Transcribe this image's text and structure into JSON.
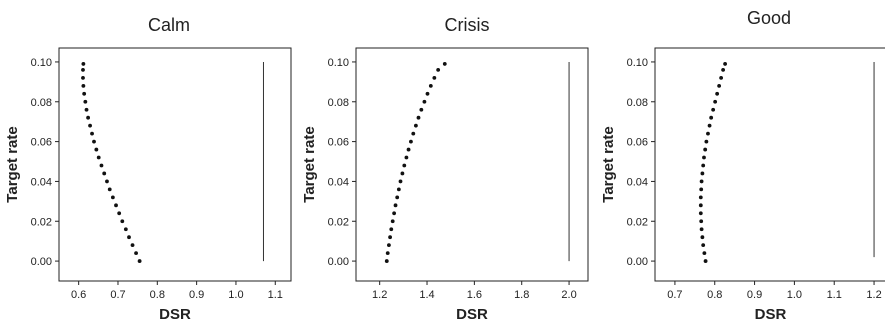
{
  "chart_data": [
    {
      "type": "scatter",
      "title": "Calm",
      "xlabel": "DSR",
      "ylabel": "Target rate",
      "xlim": [
        0.55,
        1.14
      ],
      "ylim": [
        -0.01,
        0.107
      ],
      "xticks": [
        0.6,
        0.7,
        0.8,
        0.9,
        1.0,
        1.1
      ],
      "xtick_labels": [
        "0.6",
        "0.7",
        "0.8",
        "0.9",
        "1.0",
        "1.1"
      ],
      "yticks": [
        0.0,
        0.02,
        0.04,
        0.06,
        0.08,
        0.1
      ],
      "ytick_labels": [
        "0.00",
        "0.02",
        "0.04",
        "0.06",
        "0.08",
        "0.10"
      ],
      "grid": false,
      "reference_line": {
        "x": 1.07,
        "y_range": [
          0.0,
          0.1
        ]
      },
      "points": [
        [
          0.755,
          0.0
        ],
        [
          0.746,
          0.004
        ],
        [
          0.737,
          0.008
        ],
        [
          0.728,
          0.012
        ],
        [
          0.72,
          0.016
        ],
        [
          0.711,
          0.02
        ],
        [
          0.703,
          0.024
        ],
        [
          0.695,
          0.028
        ],
        [
          0.687,
          0.032
        ],
        [
          0.679,
          0.036
        ],
        [
          0.672,
          0.04
        ],
        [
          0.665,
          0.044
        ],
        [
          0.658,
          0.048
        ],
        [
          0.651,
          0.052
        ],
        [
          0.645,
          0.056
        ],
        [
          0.639,
          0.06
        ],
        [
          0.634,
          0.064
        ],
        [
          0.629,
          0.068
        ],
        [
          0.624,
          0.072
        ],
        [
          0.62,
          0.076
        ],
        [
          0.617,
          0.08
        ],
        [
          0.614,
          0.084
        ],
        [
          0.612,
          0.088
        ],
        [
          0.611,
          0.092
        ],
        [
          0.611,
          0.096
        ],
        [
          0.612,
          0.099
        ]
      ]
    },
    {
      "type": "scatter",
      "title": "Crisis",
      "xlabel": "DSR",
      "ylabel": "Target rate",
      "xlim": [
        1.1,
        2.08
      ],
      "ylim": [
        -0.01,
        0.107
      ],
      "xticks": [
        1.2,
        1.4,
        1.6,
        1.8,
        2.0
      ],
      "xtick_labels": [
        "1.2",
        "1.4",
        "1.6",
        "1.8",
        "2.0"
      ],
      "yticks": [
        0.0,
        0.02,
        0.04,
        0.06,
        0.08,
        0.1
      ],
      "ytick_labels": [
        "0.00",
        "0.02",
        "0.04",
        "0.06",
        "0.08",
        "0.10"
      ],
      "grid": false,
      "reference_line": {
        "x": 2.0,
        "y_range": [
          0.0,
          0.1
        ]
      },
      "points": [
        [
          1.23,
          0.0
        ],
        [
          1.234,
          0.004
        ],
        [
          1.239,
          0.008
        ],
        [
          1.244,
          0.012
        ],
        [
          1.249,
          0.016
        ],
        [
          1.255,
          0.02
        ],
        [
          1.261,
          0.024
        ],
        [
          1.267,
          0.028
        ],
        [
          1.274,
          0.032
        ],
        [
          1.281,
          0.036
        ],
        [
          1.288,
          0.04
        ],
        [
          1.296,
          0.044
        ],
        [
          1.304,
          0.048
        ],
        [
          1.313,
          0.052
        ],
        [
          1.322,
          0.056
        ],
        [
          1.332,
          0.06
        ],
        [
          1.342,
          0.064
        ],
        [
          1.353,
          0.068
        ],
        [
          1.364,
          0.072
        ],
        [
          1.376,
          0.076
        ],
        [
          1.389,
          0.08
        ],
        [
          1.402,
          0.084
        ],
        [
          1.416,
          0.088
        ],
        [
          1.431,
          0.092
        ],
        [
          1.447,
          0.096
        ],
        [
          1.475,
          0.099
        ]
      ]
    },
    {
      "type": "scatter",
      "title": "Good",
      "xlabel": "DSR",
      "ylabel": "Target rate",
      "xlim": [
        0.65,
        1.23
      ],
      "ylim": [
        -0.01,
        0.107
      ],
      "xticks": [
        0.7,
        0.8,
        0.9,
        1.0,
        1.1,
        1.2
      ],
      "xtick_labels": [
        "0.7",
        "0.8",
        "0.9",
        "1.0",
        "1.1",
        "1.2"
      ],
      "yticks": [
        0.0,
        0.02,
        0.04,
        0.06,
        0.08,
        0.1
      ],
      "ytick_labels": [
        "0.00",
        "0.02",
        "0.04",
        "0.06",
        "0.08",
        "0.10"
      ],
      "grid": false,
      "reference_line": {
        "x": 1.2,
        "y_range": [
          0.002,
          0.1
        ]
      },
      "points": [
        [
          0.777,
          0.0
        ],
        [
          0.774,
          0.004
        ],
        [
          0.771,
          0.008
        ],
        [
          0.769,
          0.012
        ],
        [
          0.767,
          0.016
        ],
        [
          0.766,
          0.02
        ],
        [
          0.765,
          0.024
        ],
        [
          0.765,
          0.028
        ],
        [
          0.765,
          0.032
        ],
        [
          0.766,
          0.036
        ],
        [
          0.767,
          0.04
        ],
        [
          0.769,
          0.044
        ],
        [
          0.771,
          0.048
        ],
        [
          0.773,
          0.052
        ],
        [
          0.776,
          0.056
        ],
        [
          0.779,
          0.06
        ],
        [
          0.783,
          0.064
        ],
        [
          0.787,
          0.068
        ],
        [
          0.791,
          0.072
        ],
        [
          0.796,
          0.076
        ],
        [
          0.801,
          0.08
        ],
        [
          0.806,
          0.084
        ],
        [
          0.811,
          0.088
        ],
        [
          0.816,
          0.092
        ],
        [
          0.821,
          0.096
        ],
        [
          0.826,
          0.099
        ]
      ]
    }
  ]
}
